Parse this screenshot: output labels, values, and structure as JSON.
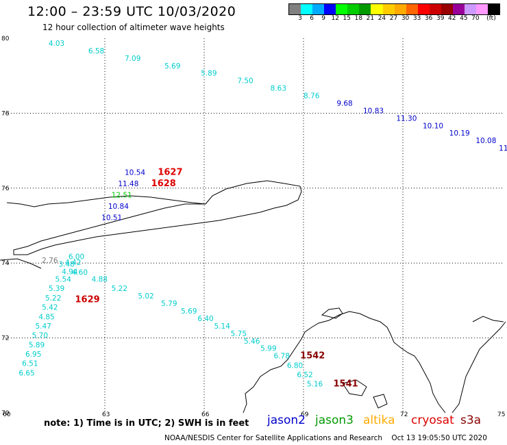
{
  "header": {
    "title": "12:00 – 23:59 UTC 10/03/2020",
    "subtitle": "12 hour collection of altimeter wave heights"
  },
  "legend": {
    "colors": [
      "#808080",
      "#00ffff",
      "#00aaff",
      "#0000ff",
      "#00ff00",
      "#00cc00",
      "#009900",
      "#ffff00",
      "#ffcc00",
      "#ffaa00",
      "#ff6600",
      "#ff0000",
      "#cc0000",
      "#990000",
      "#990099",
      "#cc99ff",
      "#ff99ff",
      "#000000"
    ],
    "labels": [
      "3",
      "6",
      "9",
      "12",
      "15",
      "18",
      "21",
      "24",
      "27",
      "30",
      "33",
      "36",
      "39",
      "42",
      "45",
      "70",
      "(ft)"
    ]
  },
  "axes": {
    "lat_labels": [
      "80",
      "78",
      "76",
      "74",
      "72",
      "70"
    ],
    "lon_labels": [
      "60",
      "63",
      "66",
      "69",
      "72",
      "75"
    ]
  },
  "observations": [
    {
      "v": "4.03",
      "c": "#00cccc",
      "lon": 61.3,
      "lat": 79.8
    },
    {
      "v": "6.58",
      "c": "#00cccc",
      "lon": 62.5,
      "lat": 79.6
    },
    {
      "v": "7.09",
      "c": "#00cccc",
      "lon": 63.6,
      "lat": 79.4
    },
    {
      "v": "5.69",
      "c": "#00cccc",
      "lon": 64.8,
      "lat": 79.2
    },
    {
      "v": "5.89",
      "c": "#00cccc",
      "lon": 65.9,
      "lat": 79.0
    },
    {
      "v": "7.50",
      "c": "#00cccc",
      "lon": 67.0,
      "lat": 78.8
    },
    {
      "v": "8.63",
      "c": "#00cccc",
      "lon": 68.0,
      "lat": 78.6
    },
    {
      "v": "8.76",
      "c": "#00cccc",
      "lon": 69.0,
      "lat": 78.4
    },
    {
      "v": "9.68",
      "c": "#0000cc",
      "lon": 70.0,
      "lat": 78.2
    },
    {
      "v": "10.83",
      "c": "#0000cc",
      "lon": 70.8,
      "lat": 78.0
    },
    {
      "v": "11.30",
      "c": "#0000cc",
      "lon": 71.8,
      "lat": 77.8
    },
    {
      "v": "10.10",
      "c": "#0000cc",
      "lon": 72.6,
      "lat": 77.6
    },
    {
      "v": "10.19",
      "c": "#0000cc",
      "lon": 73.4,
      "lat": 77.4
    },
    {
      "v": "10.08",
      "c": "#0000cc",
      "lon": 74.2,
      "lat": 77.2
    },
    {
      "v": "11.",
      "c": "#0000cc",
      "lon": 74.9,
      "lat": 77.0
    },
    {
      "v": "10.54",
      "c": "#0000cc",
      "lon": 63.6,
      "lat": 76.35
    },
    {
      "v": "11.48",
      "c": "#0000cc",
      "lon": 63.4,
      "lat": 76.05
    },
    {
      "v": "12.51",
      "c": "#00cc00",
      "lon": 63.2,
      "lat": 75.75
    },
    {
      "v": "10.84",
      "c": "#0000cc",
      "lon": 63.1,
      "lat": 75.45
    },
    {
      "v": "10.51",
      "c": "#0000cc",
      "lon": 62.9,
      "lat": 75.15
    },
    {
      "v": "2.76",
      "c": "#777777",
      "lon": 61.1,
      "lat": 74.0
    },
    {
      "v": "6.00",
      "c": "#00cccc",
      "lon": 61.9,
      "lat": 74.1
    },
    {
      "v": "3.48",
      "c": "#00cccc",
      "lon": 61.6,
      "lat": 73.9
    },
    {
      "v": "4.42",
      "c": "#00cccc",
      "lon": 61.8,
      "lat": 73.95
    },
    {
      "v": "4.94",
      "c": "#00cccc",
      "lon": 61.7,
      "lat": 73.7
    },
    {
      "v": "4.60",
      "c": "#00cccc",
      "lon": 62.0,
      "lat": 73.68
    },
    {
      "v": "5.54",
      "c": "#00cccc",
      "lon": 61.5,
      "lat": 73.5
    },
    {
      "v": "4.88",
      "c": "#00cccc",
      "lon": 62.6,
      "lat": 73.5
    },
    {
      "v": "5.39",
      "c": "#00cccc",
      "lon": 61.3,
      "lat": 73.25
    },
    {
      "v": "5.22",
      "c": "#00cccc",
      "lon": 63.2,
      "lat": 73.25
    },
    {
      "v": "5.22",
      "c": "#00cccc",
      "lon": 61.2,
      "lat": 73.0
    },
    {
      "v": "5.02",
      "c": "#00cccc",
      "lon": 64.0,
      "lat": 73.05
    },
    {
      "v": "5.42",
      "c": "#00cccc",
      "lon": 61.1,
      "lat": 72.75
    },
    {
      "v": "5.79",
      "c": "#00cccc",
      "lon": 64.7,
      "lat": 72.85
    },
    {
      "v": "4.85",
      "c": "#00cccc",
      "lon": 61.0,
      "lat": 72.5
    },
    {
      "v": "5.69",
      "c": "#00cccc",
      "lon": 65.3,
      "lat": 72.65
    },
    {
      "v": "5.47",
      "c": "#00cccc",
      "lon": 60.9,
      "lat": 72.25
    },
    {
      "v": "6.40",
      "c": "#00cccc",
      "lon": 65.8,
      "lat": 72.45
    },
    {
      "v": "5.70",
      "c": "#00cccc",
      "lon": 60.8,
      "lat": 72.0
    },
    {
      "v": "5.14",
      "c": "#00cccc",
      "lon": 66.3,
      "lat": 72.25
    },
    {
      "v": "5.89",
      "c": "#00cccc",
      "lon": 60.7,
      "lat": 71.75
    },
    {
      "v": "5.75",
      "c": "#00cccc",
      "lon": 66.8,
      "lat": 72.05
    },
    {
      "v": "6.95",
      "c": "#00cccc",
      "lon": 60.6,
      "lat": 71.5
    },
    {
      "v": "5.46",
      "c": "#00cccc",
      "lon": 67.2,
      "lat": 71.85
    },
    {
      "v": "6.51",
      "c": "#00cccc",
      "lon": 60.5,
      "lat": 71.25
    },
    {
      "v": "5.99",
      "c": "#00cccc",
      "lon": 67.7,
      "lat": 71.65
    },
    {
      "v": "6.65",
      "c": "#00cccc",
      "lon": 60.4,
      "lat": 71.0
    },
    {
      "v": "6.78",
      "c": "#00cccc",
      "lon": 68.1,
      "lat": 71.45
    },
    {
      "v": "6.80",
      "c": "#00cccc",
      "lon": 68.5,
      "lat": 71.2
    },
    {
      "v": "6.52",
      "c": "#00cccc",
      "lon": 68.8,
      "lat": 70.95
    },
    {
      "v": "5.16",
      "c": "#00cccc",
      "lon": 69.1,
      "lat": 70.7
    },
    {
      "v": "1627",
      "c": "#dd0000",
      "lon": 64.6,
      "lat": 76.35,
      "bold": true
    },
    {
      "v": "1628",
      "c": "#dd0000",
      "lon": 64.4,
      "lat": 76.05,
      "bold": true
    },
    {
      "v": "1629",
      "c": "#cc0000",
      "lon": 62.1,
      "lat": 72.95,
      "bold": true
    },
    {
      "v": "1542",
      "c": "#880000",
      "lon": 68.9,
      "lat": 71.45,
      "bold": true
    },
    {
      "v": "1541",
      "c": "#880000",
      "lon": 69.9,
      "lat": 70.7,
      "bold": true
    }
  ],
  "note": "note: 1) Time is in UTC; 2) SWH is in feet",
  "satellites": [
    {
      "name": "jason2",
      "color": "#0000cc"
    },
    {
      "name": "jason3",
      "color": "#009900"
    },
    {
      "name": "altika",
      "color": "#ffaa00"
    },
    {
      "name": "cryosat",
      "color": "#dd0000"
    },
    {
      "name": "s3a",
      "color": "#880000"
    }
  ],
  "footer": "NOAA/NESDIS Center for Satellite Applications and Research    Oct 13 19:05:50 UTC 2020"
}
